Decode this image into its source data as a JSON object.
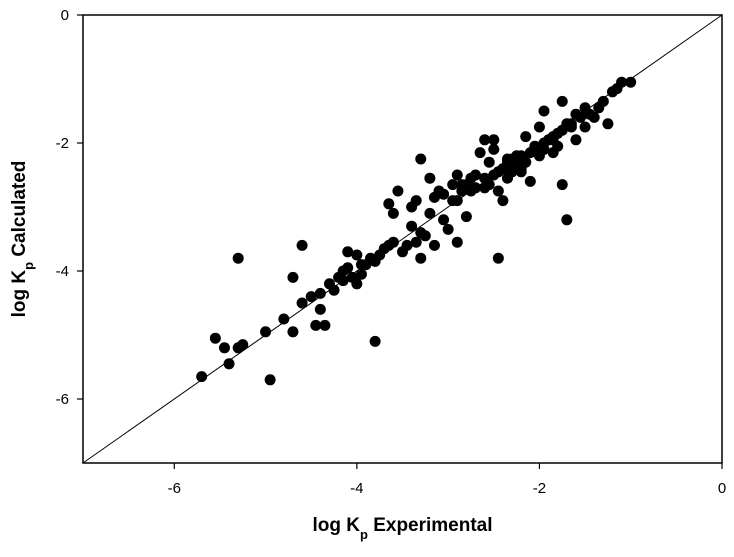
{
  "chart_data": {
    "type": "scatter",
    "title": "",
    "xlabel": {
      "main": "log K",
      "sub": "p",
      "tail": " Experimental"
    },
    "ylabel": {
      "main": "log K",
      "sub": "p",
      "tail": " Calculated"
    },
    "xlim": [
      -7,
      0
    ],
    "ylim": [
      -7,
      0
    ],
    "xticks": [
      -6,
      -4,
      -2,
      0
    ],
    "yticks": [
      -6,
      -4,
      -2,
      0
    ],
    "xtick_labels": [
      "-6",
      "-4",
      "-2",
      "0"
    ],
    "ytick_labels": [
      "-6",
      "-4",
      "-2",
      "0"
    ],
    "grid": false,
    "reference_line": {
      "from": [
        -7,
        -7
      ],
      "to": [
        0,
        0
      ],
      "label": "y = x"
    },
    "marker_color": "#000000",
    "series": [
      {
        "points": [
          [
            -5.7,
            -5.65
          ],
          [
            -5.55,
            -5.05
          ],
          [
            -5.45,
            -5.2
          ],
          [
            -5.4,
            -5.45
          ],
          [
            -5.3,
            -5.2
          ],
          [
            -5.25,
            -5.15
          ],
          [
            -5.3,
            -3.8
          ],
          [
            -5.0,
            -4.95
          ],
          [
            -4.95,
            -5.7
          ],
          [
            -4.8,
            -4.75
          ],
          [
            -4.7,
            -4.95
          ],
          [
            -4.7,
            -4.1
          ],
          [
            -4.6,
            -4.5
          ],
          [
            -4.6,
            -3.6
          ],
          [
            -4.5,
            -4.4
          ],
          [
            -4.45,
            -4.85
          ],
          [
            -4.4,
            -4.6
          ],
          [
            -4.4,
            -4.35
          ],
          [
            -4.35,
            -4.85
          ],
          [
            -4.3,
            -4.2
          ],
          [
            -4.25,
            -4.3
          ],
          [
            -4.2,
            -4.1
          ],
          [
            -4.15,
            -4.0
          ],
          [
            -4.1,
            -3.95
          ],
          [
            -4.1,
            -3.7
          ],
          [
            -4.05,
            -4.1
          ],
          [
            -4.0,
            -4.2
          ],
          [
            -4.0,
            -3.75
          ],
          [
            -3.95,
            -4.05
          ],
          [
            -3.9,
            -3.9
          ],
          [
            -3.85,
            -3.8
          ],
          [
            -3.8,
            -3.85
          ],
          [
            -3.8,
            -5.1
          ],
          [
            -3.7,
            -3.65
          ],
          [
            -3.65,
            -2.95
          ],
          [
            -3.6,
            -3.55
          ],
          [
            -3.6,
            -3.1
          ],
          [
            -3.55,
            -2.75
          ],
          [
            -3.5,
            -3.7
          ],
          [
            -3.45,
            -3.6
          ],
          [
            -3.4,
            -3.3
          ],
          [
            -3.35,
            -2.9
          ],
          [
            -3.3,
            -3.8
          ],
          [
            -3.3,
            -2.25
          ],
          [
            -3.25,
            -3.45
          ],
          [
            -3.2,
            -3.1
          ],
          [
            -3.2,
            -2.55
          ],
          [
            -3.15,
            -3.6
          ],
          [
            -3.1,
            -2.75
          ],
          [
            -3.05,
            -3.2
          ],
          [
            -3.0,
            -3.35
          ],
          [
            -2.95,
            -2.9
          ],
          [
            -2.95,
            -2.65
          ],
          [
            -2.9,
            -3.55
          ],
          [
            -2.9,
            -2.5
          ],
          [
            -2.85,
            -2.75
          ],
          [
            -2.8,
            -3.15
          ],
          [
            -2.8,
            -2.65
          ],
          [
            -2.75,
            -2.55
          ],
          [
            -2.7,
            -2.7
          ],
          [
            -2.65,
            -2.15
          ],
          [
            -2.6,
            -2.55
          ],
          [
            -2.6,
            -1.95
          ],
          [
            -2.55,
            -2.65
          ],
          [
            -2.5,
            -2.5
          ],
          [
            -2.5,
            -1.95
          ],
          [
            -2.45,
            -2.75
          ],
          [
            -2.45,
            -2.45
          ],
          [
            -2.4,
            -2.9
          ],
          [
            -2.4,
            -2.4
          ],
          [
            -2.35,
            -2.55
          ],
          [
            -2.35,
            -2.3
          ],
          [
            -2.3,
            -2.45
          ],
          [
            -2.3,
            -2.25
          ],
          [
            -2.25,
            -2.35
          ],
          [
            -2.2,
            -2.2
          ],
          [
            -2.2,
            -2.45
          ],
          [
            -2.15,
            -2.3
          ],
          [
            -2.1,
            -2.15
          ],
          [
            -2.1,
            -2.6
          ],
          [
            -2.05,
            -2.05
          ],
          [
            -2.0,
            -2.2
          ],
          [
            -2.0,
            -1.75
          ],
          [
            -1.95,
            -2.1
          ],
          [
            -1.9,
            -1.95
          ],
          [
            -1.85,
            -2.15
          ],
          [
            -1.85,
            -1.9
          ],
          [
            -1.8,
            -1.85
          ],
          [
            -1.8,
            -2.05
          ],
          [
            -1.75,
            -1.8
          ],
          [
            -1.7,
            -1.7
          ],
          [
            -1.7,
            -3.2
          ],
          [
            -1.65,
            -1.75
          ],
          [
            -1.6,
            -1.95
          ],
          [
            -1.55,
            -1.6
          ],
          [
            -1.5,
            -1.75
          ],
          [
            -1.5,
            -1.45
          ],
          [
            -1.45,
            -1.55
          ],
          [
            -1.4,
            -1.6
          ],
          [
            -1.35,
            -1.45
          ],
          [
            -1.3,
            -1.35
          ],
          [
            -1.25,
            -1.7
          ],
          [
            -1.2,
            -1.2
          ],
          [
            -1.15,
            -1.15
          ],
          [
            -1.1,
            -1.05
          ],
          [
            -1.0,
            -1.05
          ],
          [
            -2.45,
            -3.8
          ],
          [
            -2.5,
            -2.1
          ],
          [
            -2.7,
            -2.5
          ],
          [
            -2.9,
            -2.9
          ],
          [
            -3.3,
            -3.4
          ],
          [
            -3.4,
            -3.0
          ],
          [
            -3.15,
            -2.85
          ],
          [
            -2.75,
            -2.75
          ],
          [
            -2.15,
            -1.9
          ],
          [
            -1.95,
            -2.0
          ],
          [
            -1.75,
            -2.65
          ],
          [
            -1.95,
            -1.5
          ],
          [
            -1.75,
            -1.35
          ],
          [
            -2.2,
            -2.4
          ],
          [
            -2.6,
            -2.7
          ],
          [
            -3.05,
            -2.8
          ],
          [
            -3.65,
            -3.6
          ],
          [
            -3.95,
            -3.9
          ],
          [
            -4.15,
            -4.15
          ],
          [
            -2.85,
            -2.65
          ],
          [
            -2.25,
            -2.2
          ],
          [
            -2.05,
            -2.1
          ],
          [
            -1.65,
            -1.7
          ],
          [
            -1.6,
            -1.55
          ],
          [
            -2.35,
            -2.25
          ],
          [
            -2.55,
            -2.3
          ],
          [
            -1.85,
            -1.95
          ],
          [
            -3.35,
            -3.55
          ],
          [
            -3.75,
            -3.75
          ]
        ]
      }
    ]
  }
}
